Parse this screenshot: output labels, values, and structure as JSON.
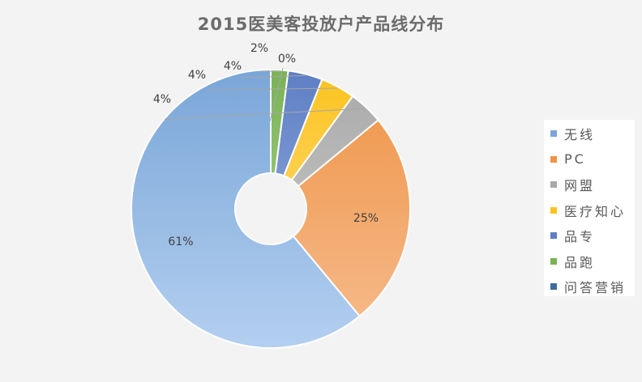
{
  "chart_data": {
    "type": "pie",
    "donut": true,
    "title": "2015医美客投放户产品线分布",
    "categories": [
      "无线",
      "PC",
      "网盟",
      "医疗知心",
      "品专",
      "品跑",
      "问答营销"
    ],
    "values": [
      61,
      25,
      4,
      4,
      4,
      2,
      0
    ],
    "labels": [
      "61%",
      "25%",
      "4%",
      "4%",
      "4%",
      "2%",
      "0%"
    ],
    "legend_position": "right"
  },
  "colors": {
    "series": [
      "#7aa6d8",
      "#ef9447",
      "#a9a9a9",
      "#fcc31e",
      "#5d7fc4",
      "#79b354",
      "#3f6aa0"
    ],
    "series_light": [
      "#b3cff0",
      "#f6bc8e",
      "#d2d2d2",
      "#fde29a",
      "#a5b8e6",
      "#b7dc9f",
      "#7e9fc9"
    ],
    "background": "#f3f3f3",
    "title": "#6b6b6b"
  }
}
